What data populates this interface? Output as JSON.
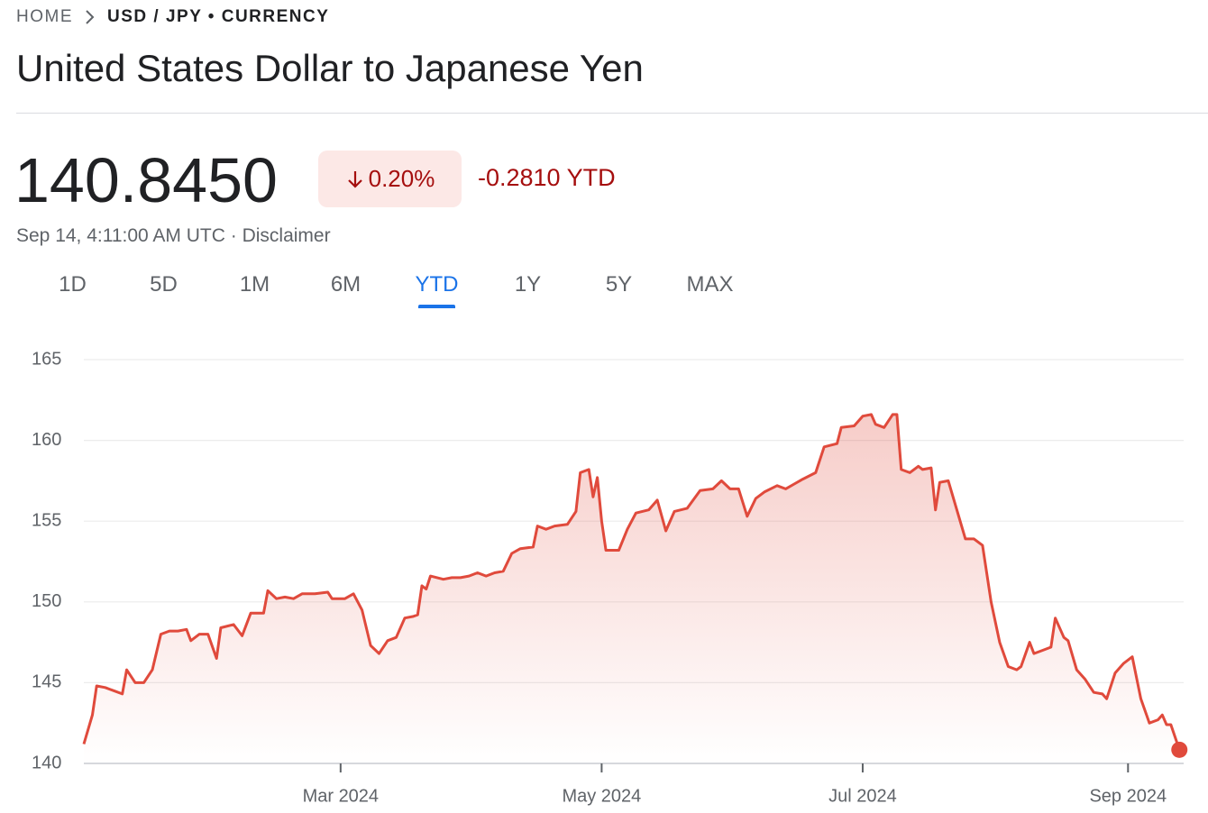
{
  "breadcrumb": {
    "home": "HOME",
    "current": "USD / JPY • CURRENCY"
  },
  "title": "United States Dollar to Japanese Yen",
  "price": "140.8450",
  "change_percent": "0.20%",
  "change_ytd": "-0.2810 YTD",
  "timestamp": "Sep 14, 4:11:00 AM UTC ·",
  "disclaimer": "Disclaimer",
  "ranges": [
    "1D",
    "5D",
    "1M",
    "6M",
    "YTD",
    "1Y",
    "5Y",
    "MAX"
  ],
  "selected_range": 4,
  "chart_data": {
    "type": "line",
    "x": [
      0,
      2,
      3,
      5,
      6,
      9,
      10,
      12,
      14,
      16,
      18,
      20,
      22,
      24,
      25,
      27,
      29,
      31,
      32,
      35,
      37,
      39,
      42,
      43,
      45,
      47,
      49,
      51,
      54,
      57,
      58,
      61,
      63,
      65,
      67,
      69,
      71,
      73,
      75,
      77,
      78,
      79,
      80,
      81,
      84,
      86,
      88,
      90,
      92,
      94,
      96,
      98,
      100,
      102,
      105,
      106,
      108,
      110,
      113,
      115,
      116,
      118,
      119,
      120,
      121,
      122,
      125,
      127,
      129,
      132,
      134,
      136,
      138,
      141,
      144,
      147,
      149,
      151,
      153,
      155,
      157,
      159,
      162,
      164,
      166,
      168,
      171,
      173,
      176,
      177,
      180,
      182,
      184,
      185,
      187,
      189,
      190,
      191,
      193,
      195,
      196,
      198,
      199,
      200,
      202,
      204,
      206,
      208,
      210,
      212,
      214,
      216,
      218,
      219,
      221,
      222,
      224,
      226,
      227,
      229,
      230,
      232,
      234,
      236,
      238,
      239,
      241,
      243,
      245,
      247,
      249,
      251,
      252,
      253,
      254,
      256
    ],
    "series": [
      {
        "name": "USD/JPY",
        "color": "#e04a3c",
        "values": [
          141.2,
          143.0,
          144.8,
          144.7,
          144.6,
          144.3,
          145.8,
          145.0,
          145.0,
          145.8,
          148.0,
          148.2,
          148.2,
          148.3,
          147.6,
          148.0,
          148.0,
          146.5,
          148.4,
          148.6,
          147.9,
          149.3,
          149.3,
          150.7,
          150.2,
          150.3,
          150.2,
          150.5,
          150.5,
          150.6,
          150.2,
          150.2,
          150.5,
          149.5,
          147.3,
          146.8,
          147.6,
          147.8,
          149.0,
          149.1,
          149.2,
          151.0,
          150.8,
          151.6,
          151.4,
          151.5,
          151.5,
          151.6,
          151.8,
          151.6,
          151.8,
          151.9,
          153.0,
          153.3,
          153.4,
          154.7,
          154.5,
          154.7,
          154.8,
          155.6,
          158.0,
          158.2,
          156.5,
          157.7,
          155.0,
          153.2,
          153.2,
          154.5,
          155.5,
          155.7,
          156.3,
          154.4,
          155.6,
          155.8,
          156.9,
          157.0,
          157.5,
          157.0,
          157.0,
          155.3,
          156.4,
          156.8,
          157.2,
          157.0,
          157.3,
          157.6,
          158.0,
          159.6,
          159.8,
          160.8,
          160.9,
          161.5,
          161.6,
          161.0,
          160.8,
          161.6,
          161.6,
          158.2,
          158.0,
          158.4,
          158.2,
          158.3,
          155.7,
          157.4,
          157.5,
          155.7,
          153.9,
          153.9,
          153.5,
          150.0,
          147.5,
          146.0,
          145.8,
          146.0,
          147.5,
          146.8,
          147.0,
          147.2,
          149.0,
          147.8,
          147.6,
          145.8,
          145.2,
          144.4,
          144.3,
          144.0,
          145.6,
          146.2,
          146.6,
          144.0,
          142.5,
          142.7,
          143.0,
          142.4,
          142.4,
          140.845
        ]
      }
    ],
    "xlim": [
      0,
      257
    ],
    "xticks": [
      {
        "value": 60,
        "label": "Mar 2024"
      },
      {
        "value": 121,
        "label": "May 2024"
      },
      {
        "value": 182,
        "label": "Jul 2024"
      },
      {
        "value": 244,
        "label": "Sep 2024"
      }
    ],
    "ylim": [
      140,
      165
    ],
    "yticks": [
      140,
      145,
      150,
      155,
      160,
      165
    ],
    "grid": true
  }
}
